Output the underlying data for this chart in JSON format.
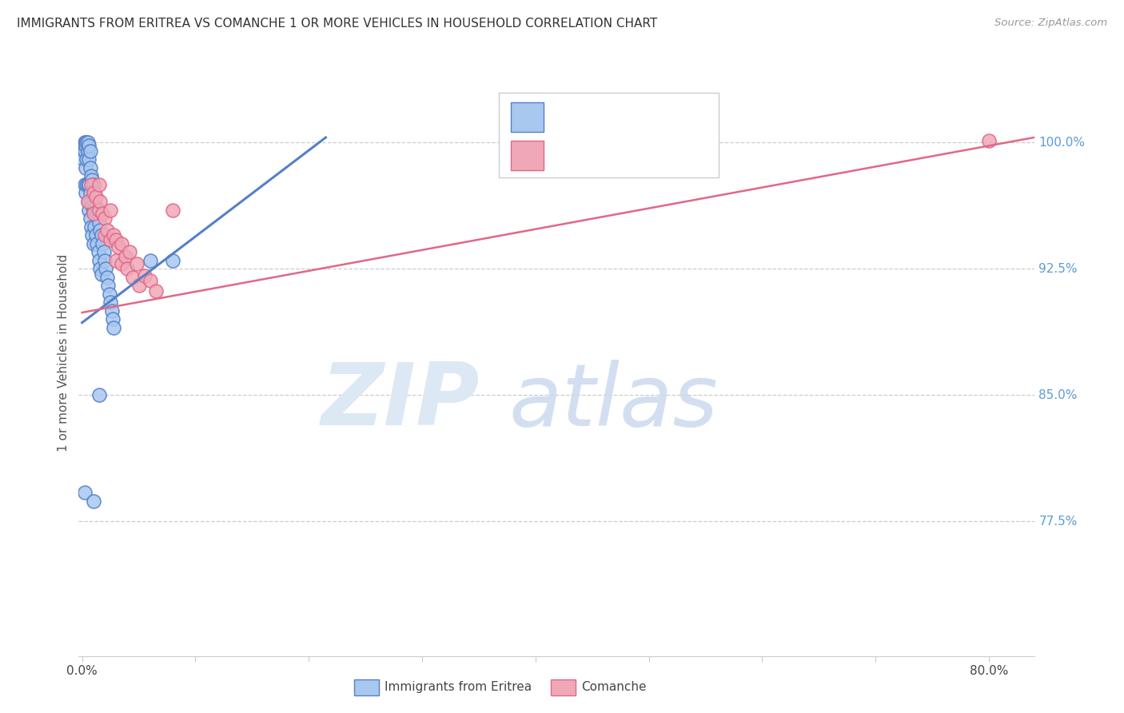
{
  "title": "IMMIGRANTS FROM ERITREA VS COMANCHE 1 OR MORE VEHICLES IN HOUSEHOLD CORRELATION CHART",
  "source": "Source: ZipAtlas.com",
  "ylabel": "1 or more Vehicles in Household",
  "legend_label1": "Immigrants from Eritrea",
  "legend_label2": "Comanche",
  "color_blue": "#A8C8F0",
  "color_pink": "#F0A8B8",
  "line_color_blue": "#5580C8",
  "line_color_pink": "#E06888",
  "background_color": "#FFFFFF",
  "xlim_min": -0.003,
  "xlim_max": 0.84,
  "ylim_min": 0.695,
  "ylim_max": 1.055,
  "ytick_values": [
    1.0,
    0.925,
    0.85,
    0.775
  ],
  "ytick_labels": [
    "100.0%",
    "92.5%",
    "85.0%",
    "77.5%"
  ],
  "xtick_values": [
    0.0,
    0.1,
    0.2,
    0.3,
    0.4,
    0.5,
    0.6,
    0.7,
    0.8
  ],
  "xtick_labels": [
    "0.0%",
    "",
    "",
    "",
    "",
    "",
    "",
    "",
    "80.0%"
  ],
  "blue_trendline_x": [
    0.0,
    0.215
  ],
  "blue_trendline_y": [
    0.893,
    1.003
  ],
  "pink_trendline_x": [
    0.0,
    0.84
  ],
  "pink_trendline_y": [
    0.899,
    1.003
  ],
  "blue_points_x": [
    0.001,
    0.001,
    0.001,
    0.002,
    0.002,
    0.002,
    0.002,
    0.003,
    0.003,
    0.003,
    0.003,
    0.004,
    0.004,
    0.004,
    0.005,
    0.005,
    0.005,
    0.005,
    0.006,
    0.006,
    0.006,
    0.006,
    0.007,
    0.007,
    0.007,
    0.007,
    0.008,
    0.008,
    0.008,
    0.009,
    0.009,
    0.009,
    0.01,
    0.01,
    0.01,
    0.011,
    0.011,
    0.012,
    0.012,
    0.013,
    0.013,
    0.014,
    0.014,
    0.015,
    0.015,
    0.016,
    0.016,
    0.017,
    0.017,
    0.018,
    0.019,
    0.02,
    0.021,
    0.022,
    0.023,
    0.024,
    0.025,
    0.026,
    0.027,
    0.028,
    0.06,
    0.08,
    0.002,
    0.01,
    0.015
  ],
  "blue_points_y": [
    0.998,
    0.995,
    0.99,
    1.0,
    0.998,
    0.995,
    0.975,
    1.0,
    0.998,
    0.985,
    0.97,
    1.0,
    0.99,
    0.975,
    1.0,
    0.995,
    0.975,
    0.965,
    0.998,
    0.99,
    0.975,
    0.96,
    0.995,
    0.985,
    0.97,
    0.955,
    0.98,
    0.965,
    0.95,
    0.978,
    0.962,
    0.945,
    0.975,
    0.96,
    0.94,
    0.97,
    0.95,
    0.962,
    0.945,
    0.958,
    0.94,
    0.955,
    0.935,
    0.952,
    0.93,
    0.948,
    0.925,
    0.945,
    0.922,
    0.94,
    0.935,
    0.93,
    0.925,
    0.92,
    0.915,
    0.91,
    0.905,
    0.9,
    0.895,
    0.89,
    0.93,
    0.93,
    0.792,
    0.787,
    0.85
  ],
  "pink_points_x": [
    0.005,
    0.008,
    0.01,
    0.01,
    0.012,
    0.015,
    0.015,
    0.016,
    0.018,
    0.02,
    0.02,
    0.022,
    0.025,
    0.025,
    0.028,
    0.03,
    0.03,
    0.032,
    0.035,
    0.035,
    0.038,
    0.04,
    0.042,
    0.045,
    0.048,
    0.05,
    0.055,
    0.06,
    0.065,
    0.08,
    0.8
  ],
  "pink_points_y": [
    0.965,
    0.975,
    0.97,
    0.958,
    0.968,
    0.975,
    0.96,
    0.965,
    0.958,
    0.955,
    0.945,
    0.948,
    0.96,
    0.942,
    0.945,
    0.942,
    0.93,
    0.938,
    0.94,
    0.928,
    0.932,
    0.925,
    0.935,
    0.92,
    0.928,
    0.915,
    0.921,
    0.918,
    0.912,
    0.96,
    1.001
  ]
}
